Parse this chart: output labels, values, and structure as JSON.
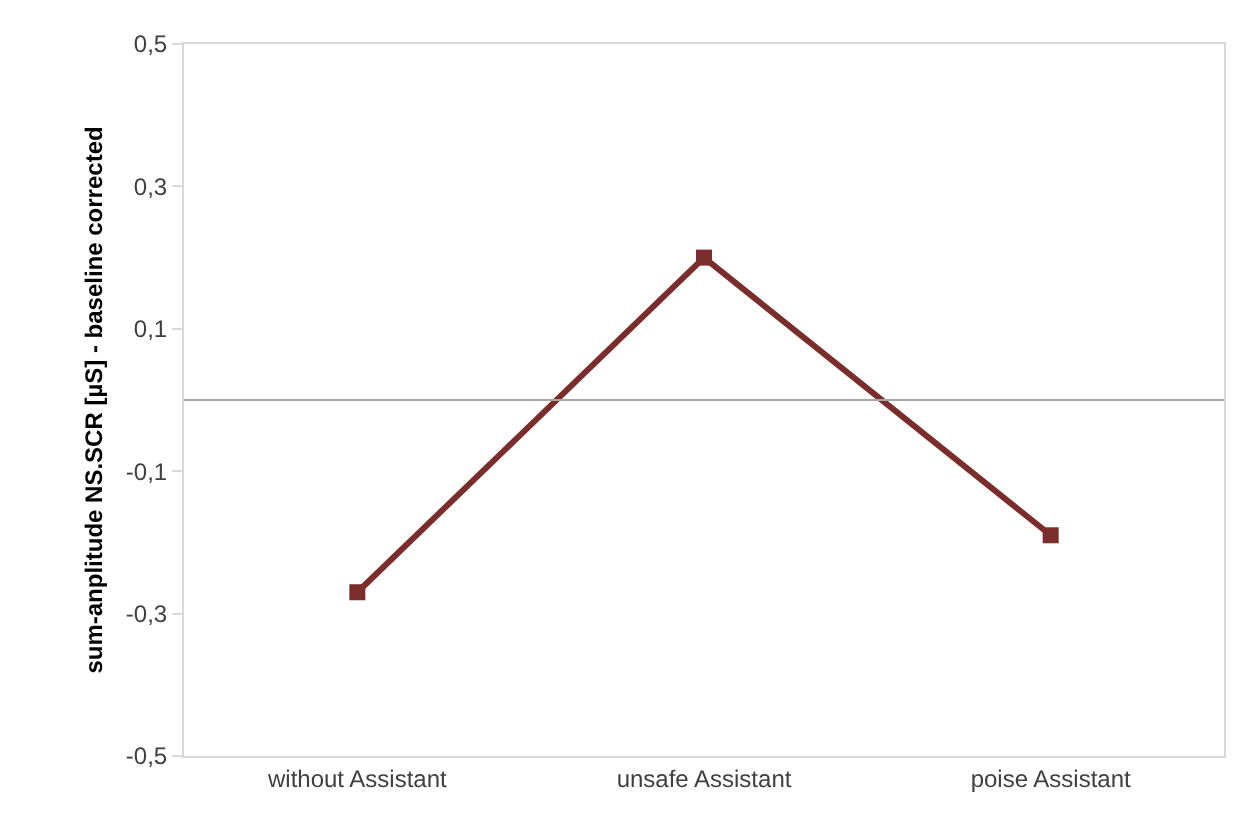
{
  "chart_data": {
    "type": "line",
    "ylabel": "sum-anplitude NS.SCR [µS] - baseline corrected",
    "categories": [
      "without Assistant",
      "unsafe Assistant",
      "poise Assistant"
    ],
    "series": [
      {
        "color": "#7b2d2b",
        "values": [
          -0.27,
          0.2,
          -0.19
        ]
      }
    ],
    "ylim": [
      -0.5,
      0.5
    ],
    "yticks": [
      {
        "value": -0.5,
        "label": "-0,5"
      },
      {
        "value": -0.3,
        "label": "-0,3"
      },
      {
        "value": -0.1,
        "label": "-0,1"
      },
      {
        "value": 0.1,
        "label": "0,1"
      },
      {
        "value": 0.3,
        "label": "0,3"
      },
      {
        "value": 0.5,
        "label": "0,5"
      }
    ],
    "ref_lines": [
      {
        "axis": "y",
        "value": 0,
        "color": "#a6a6a6"
      }
    ],
    "marker": "square",
    "line_style": "solid",
    "grid": false
  }
}
